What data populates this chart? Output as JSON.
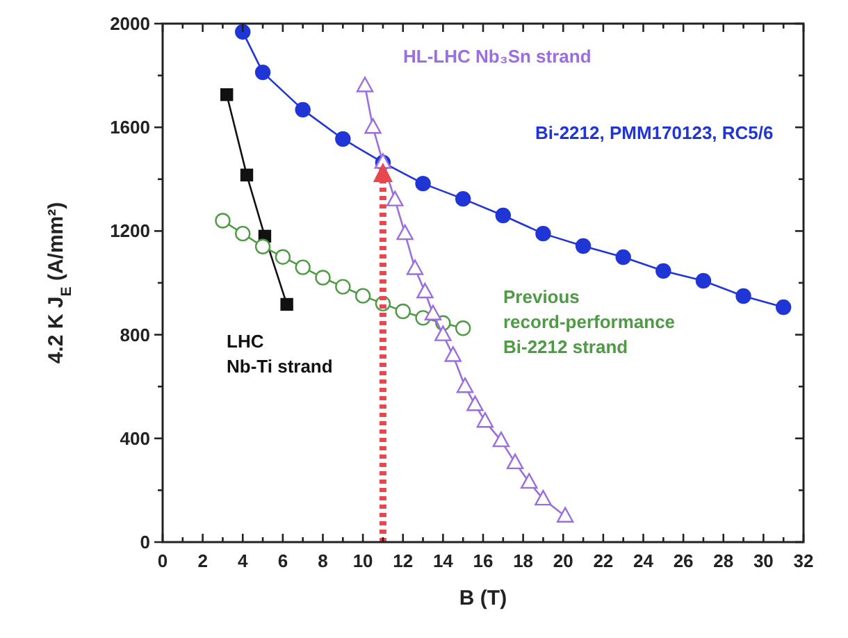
{
  "chart_data": {
    "type": "line",
    "xlabel": "B (T)",
    "ylabel": "4.2 K J$_{E}$ (A/mm²)",
    "xlim": [
      0,
      32
    ],
    "ylim": [
      0,
      2000
    ],
    "xticks": [
      0,
      {
        "value": 1,
        "label": null
      },
      2,
      {
        "value": 3,
        "label": null
      },
      4,
      {
        "value": 5,
        "label": null
      },
      6,
      {
        "value": 7,
        "label": null
      },
      8,
      {
        "value": 9,
        "label": null
      },
      10,
      {
        "value": 11,
        "label": null
      },
      12,
      {
        "value": 13,
        "label": null
      },
      14,
      {
        "value": 15,
        "label": null
      },
      16,
      {
        "value": 17,
        "label": null
      },
      18,
      {
        "value": 19,
        "label": null
      },
      20,
      {
        "value": 21,
        "label": null
      },
      22,
      {
        "value": 23,
        "label": null
      },
      24,
      {
        "value": 25,
        "label": null
      },
      26,
      {
        "value": 27,
        "label": null
      },
      28,
      {
        "value": 29,
        "label": null
      },
      30,
      {
        "value": 31,
        "label": null
      },
      32
    ],
    "yticks": [
      0,
      {
        "value": 200,
        "label": null
      },
      400,
      {
        "value": 600,
        "label": null
      },
      800,
      {
        "value": 1000,
        "label": null
      },
      1200,
      {
        "value": 1400,
        "label": null
      },
      1600,
      {
        "value": 1800,
        "label": null
      },
      2000
    ],
    "grid": false,
    "legend": false,
    "line_style": "solid",
    "series": [
      {
        "name": "Bi-2212, PMM170123, RC5/6",
        "color": "#1f35d6",
        "marker": "circle",
        "x": [
          4,
          5,
          7,
          9,
          11,
          13,
          15,
          17,
          19,
          21,
          23,
          25,
          27,
          29,
          31
        ],
        "values": [
          1968,
          1812,
          1668,
          1555,
          1464,
          1383,
          1324,
          1260,
          1190,
          1142,
          1099,
          1046,
          1008,
          949,
          906
        ]
      },
      {
        "name": "LHC\nNb-Ti strand",
        "color": "#111111",
        "marker": "square",
        "x": [
          3.2,
          4.2,
          5.1,
          6.2
        ],
        "values": [
          1726,
          1416,
          1180,
          917
        ]
      },
      {
        "name": "Previous\nrecord-performance\nBi-2212 strand",
        "color": "#4f9a45",
        "marker": "circle",
        "x": [
          3,
          4,
          5,
          6,
          7,
          8,
          9,
          10,
          11,
          12,
          13,
          14,
          15
        ],
        "values": [
          1240,
          1190,
          1140,
          1100,
          1060,
          1020,
          985,
          950,
          920,
          890,
          865,
          845,
          825
        ]
      },
      {
        "name": "HL-LHC Nb₃Sn strand",
        "color": "#9a6ee0",
        "marker": "triangle",
        "x": [
          10.1,
          10.5,
          11,
          11.6,
          12.1,
          12.6,
          13.1,
          13.5,
          14,
          14.5,
          15.1,
          15.6,
          16.1,
          16.9,
          17.6,
          18.3,
          19,
          20.1
        ],
        "values": [
          1760,
          1600,
          1465,
          1320,
          1190,
          1055,
          965,
          880,
          800,
          720,
          600,
          530,
          466,
          391,
          306,
          231,
          166,
          100
        ]
      }
    ],
    "ref_lines": [
      {
        "axis": "x",
        "value": 11,
        "color": "#e8474e",
        "line_style": "dotted"
      }
    ]
  }
}
